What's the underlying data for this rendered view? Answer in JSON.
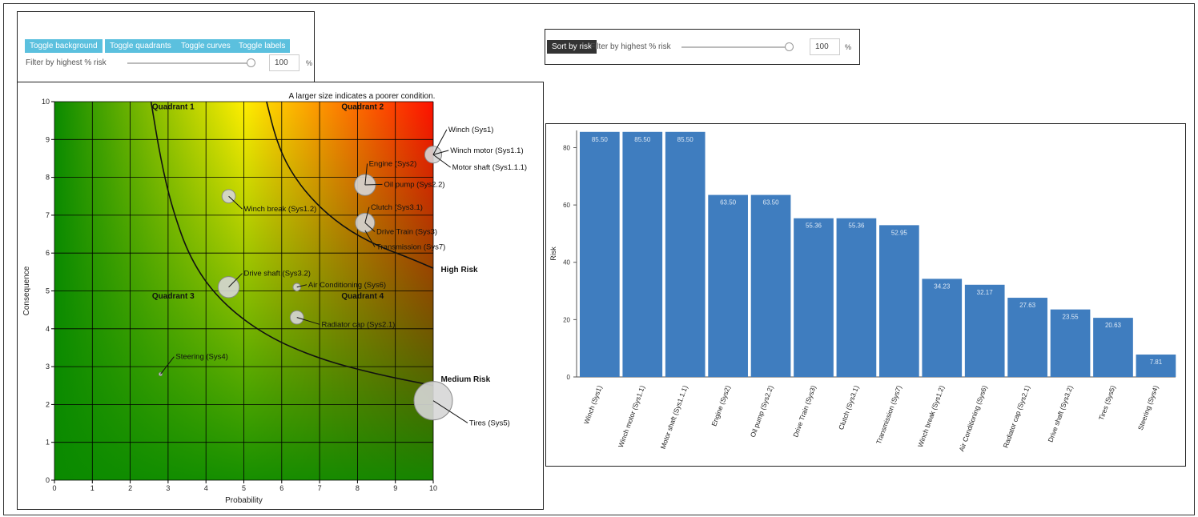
{
  "controls_left": {
    "buttons": [
      "Toggle background",
      "Toggle quadrants",
      "Toggle curves",
      "Toggle labels"
    ],
    "filter_label": "Filter by highest % risk",
    "filter_value": "100",
    "percent_sign": "%",
    "slider_fraction": 1.0
  },
  "controls_right": {
    "sort_button": "Sort by risk",
    "filter_label": "Filter by highest % risk",
    "filter_value": "100",
    "percent_sign": "%",
    "slider_fraction": 1.0
  },
  "chart_data": [
    {
      "type": "scatter",
      "title": "A larger size indicates a poorer condition.",
      "xlabel": "Probability",
      "ylabel": "Consequence",
      "xlim": [
        0,
        10
      ],
      "ylim": [
        0,
        10
      ],
      "xticks": [
        0,
        1,
        2,
        3,
        4,
        5,
        6,
        7,
        8,
        9,
        10
      ],
      "yticks": [
        0,
        1,
        2,
        3,
        4,
        5,
        6,
        7,
        8,
        9,
        10
      ],
      "background": "risk-gradient",
      "grid": true,
      "quadrants": [
        {
          "label": "Quadrant 1",
          "x": 3.0,
          "y": 9.8
        },
        {
          "label": "Quadrant 2",
          "x": 8.0,
          "y": 9.8
        },
        {
          "label": "Quadrant 3",
          "x": 3.0,
          "y": 4.8
        },
        {
          "label": "Quadrant 4",
          "x": 8.0,
          "y": 4.8
        }
      ],
      "curves": [
        {
          "label": "High Risk",
          "label_x": 10.2,
          "label_y": 5.5,
          "points": [
            [
              5.6,
              10
            ],
            [
              5.85,
              9
            ],
            [
              6.2,
              8.2
            ],
            [
              6.8,
              7.4
            ],
            [
              7.6,
              6.7
            ],
            [
              8.5,
              6.2
            ],
            [
              9.3,
              5.9
            ],
            [
              10,
              5.6
            ]
          ]
        },
        {
          "label": "Medium Risk",
          "label_x": 10.2,
          "label_y": 2.6,
          "points": [
            [
              2.55,
              10
            ],
            [
              2.8,
              8.5
            ],
            [
              3.1,
              7.2
            ],
            [
              3.6,
              5.8
            ],
            [
              4.4,
              4.7
            ],
            [
              5.6,
              3.8
            ],
            [
              7.0,
              3.2
            ],
            [
              8.5,
              2.8
            ],
            [
              10,
              2.5
            ]
          ]
        }
      ],
      "points": [
        {
          "name": "Winch (Sys1)",
          "x": 10.0,
          "y": 8.6,
          "size": 0.44,
          "lx": 10.4,
          "ly": 9.2,
          "anchor": "start"
        },
        {
          "name": "Winch motor (Sys1.1)",
          "x": 10.0,
          "y": 8.6,
          "size": 0.0,
          "lx": 10.45,
          "ly": 8.65,
          "anchor": "start"
        },
        {
          "name": "Motor shaft (Sys1.1.1)",
          "x": 10.0,
          "y": 8.6,
          "size": 0.0,
          "lx": 10.5,
          "ly": 8.2,
          "anchor": "start"
        },
        {
          "name": "Engine (Sys2)",
          "x": 8.2,
          "y": 7.8,
          "size": 0.55,
          "lx": 8.3,
          "ly": 8.3,
          "anchor": "start"
        },
        {
          "name": "Oil pump (Sys2.2)",
          "x": 8.2,
          "y": 7.8,
          "size": 0.0,
          "lx": 8.7,
          "ly": 7.75,
          "anchor": "start"
        },
        {
          "name": "Winch break (Sys1.2)",
          "x": 4.6,
          "y": 7.5,
          "size": 0.35,
          "lx": 5.0,
          "ly": 7.1,
          "anchor": "start"
        },
        {
          "name": "Clutch (Sys3.1)",
          "x": 8.2,
          "y": 6.8,
          "size": 0.5,
          "lx": 8.35,
          "ly": 7.15,
          "anchor": "start"
        },
        {
          "name": "Drive Train (Sys3)",
          "x": 8.2,
          "y": 6.8,
          "size": 0.0,
          "lx": 8.5,
          "ly": 6.5,
          "anchor": "start"
        },
        {
          "name": "Transmission (Sys7)",
          "x": 8.2,
          "y": 6.6,
          "size": 0.0,
          "lx": 8.5,
          "ly": 6.1,
          "anchor": "start"
        },
        {
          "name": "Drive shaft (Sys3.2)",
          "x": 4.6,
          "y": 5.1,
          "size": 0.55,
          "lx": 5.0,
          "ly": 5.4,
          "anchor": "start"
        },
        {
          "name": "Air Conditioning (Sys6)",
          "x": 6.4,
          "y": 5.1,
          "size": 0.2,
          "lx": 6.7,
          "ly": 5.1,
          "anchor": "start"
        },
        {
          "name": "Radiator cap (Sys2.1)",
          "x": 6.4,
          "y": 4.3,
          "size": 0.35,
          "lx": 7.05,
          "ly": 4.05,
          "anchor": "start"
        },
        {
          "name": "Steering (Sys4)",
          "x": 2.8,
          "y": 2.8,
          "size": 0.05,
          "lx": 3.2,
          "ly": 3.2,
          "anchor": "start"
        },
        {
          "name": "Tires (Sys5)",
          "x": 10.0,
          "y": 2.1,
          "size": 1.0,
          "lx": 10.95,
          "ly": 1.45,
          "anchor": "start"
        }
      ]
    },
    {
      "type": "bar",
      "title": "",
      "xlabel": "",
      "ylabel": "Risk",
      "ylim": [
        0,
        86
      ],
      "yticks": [
        0,
        20,
        40,
        60,
        80
      ],
      "color": "#3f7dbf",
      "categories": [
        "Winch (Sys1)",
        "Winch motor (Sys1.1)",
        "Motor shaft (Sys1.1.1)",
        "Engine (Sys2)",
        "Oil pump (Sys2.2)",
        "Drive Train (Sys3)",
        "Clutch (Sys3.1)",
        "Transmission (Sys7)",
        "Winch break (Sys1.2)",
        "Air Conditioning (Sys6)",
        "Radiator cap (Sys2.1)",
        "Drive shaft (Sys3.2)",
        "Tires (Sys5)",
        "Steering (Sys4)"
      ],
      "values": [
        85.5,
        85.5,
        85.5,
        63.5,
        63.5,
        55.36,
        55.36,
        52.95,
        34.23,
        32.17,
        27.63,
        23.55,
        20.63,
        7.81
      ],
      "labels": [
        "85.50",
        "85.50",
        "85.50",
        "63.50",
        "63.50",
        "55.36",
        "55.36",
        "52.95",
        "34.23",
        "32.17",
        "27.63",
        "23.55",
        "20.63",
        "7.81"
      ]
    }
  ]
}
